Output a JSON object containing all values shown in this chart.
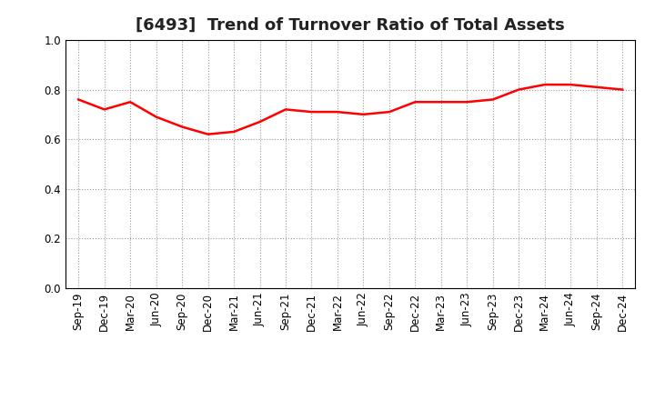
{
  "title": "[6493]  Trend of Turnover Ratio of Total Assets",
  "x_labels": [
    "Sep-19",
    "Dec-19",
    "Mar-20",
    "Jun-20",
    "Sep-20",
    "Dec-20",
    "Mar-21",
    "Jun-21",
    "Sep-21",
    "Dec-21",
    "Mar-22",
    "Jun-22",
    "Sep-22",
    "Dec-22",
    "Mar-23",
    "Jun-23",
    "Sep-23",
    "Dec-23",
    "Mar-24",
    "Jun-24",
    "Sep-24",
    "Dec-24"
  ],
  "y_values": [
    0.76,
    0.72,
    0.75,
    0.69,
    0.65,
    0.62,
    0.63,
    0.67,
    0.72,
    0.71,
    0.71,
    0.7,
    0.71,
    0.75,
    0.75,
    0.75,
    0.76,
    0.8,
    0.82,
    0.82,
    0.81,
    0.8
  ],
  "line_color": "#ff0000",
  "line_width": 1.8,
  "ylim": [
    0.0,
    1.0
  ],
  "yticks": [
    0.0,
    0.2,
    0.4,
    0.6,
    0.8,
    1.0
  ],
  "grid_color": "#999999",
  "grid_linestyle": ":",
  "background_color": "#ffffff",
  "title_fontsize": 13,
  "tick_fontsize": 8.5,
  "title_color": "#222222"
}
